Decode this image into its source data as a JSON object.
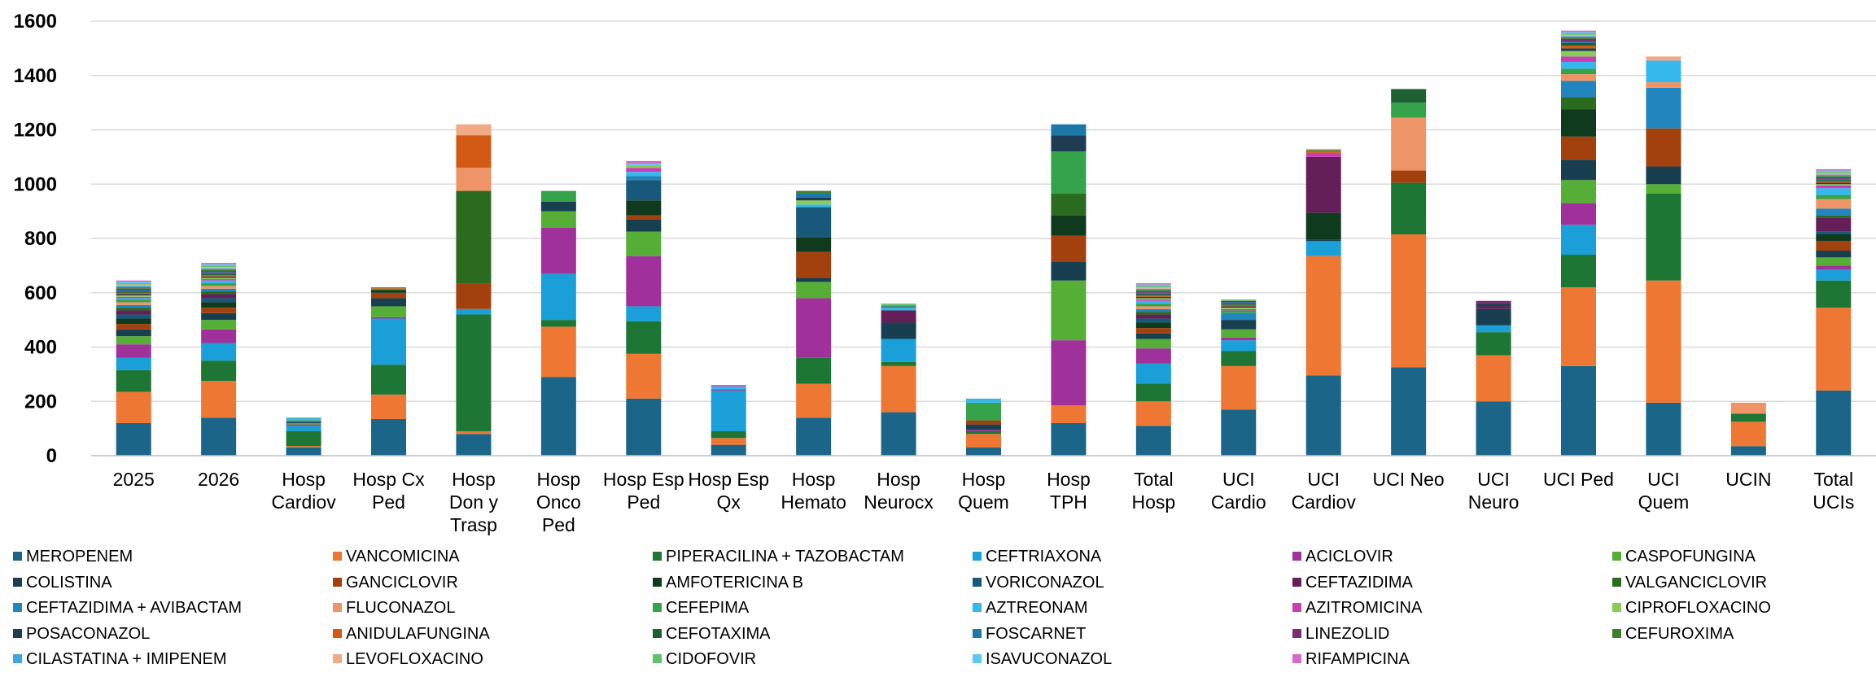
{
  "chart_data": {
    "type": "bar",
    "stacked": true,
    "title": "",
    "xlabel": "",
    "ylabel": "",
    "ylim": [
      0,
      1600
    ],
    "yticks": [
      0,
      200,
      400,
      600,
      800,
      1000,
      1200,
      1400,
      1600
    ],
    "grid": true,
    "legend_position": "bottom",
    "categories": [
      "2025",
      "2026",
      "Hosp Cardiov",
      "Hosp Cx Ped",
      "Hosp Don y Trasp",
      "Hosp Onco Ped",
      "Hosp Esp Ped",
      "Hosp Esp Qx",
      "Hosp Hemato",
      "Hosp Neurocx",
      "Hosp Quem",
      "Hosp TPH",
      "Total Hosp",
      "UCI Cardio",
      "UCI Cardiov",
      "UCI Neo",
      "UCI Neuro",
      "UCI Ped",
      "UCI Quem",
      "UCIN",
      "Total UCIs"
    ],
    "category_labels": [
      [
        "2025"
      ],
      [
        "2026"
      ],
      [
        "Hosp",
        "Cardiov"
      ],
      [
        "Hosp Cx",
        "Ped"
      ],
      [
        "Hosp",
        "Don y",
        "Trasp"
      ],
      [
        "Hosp",
        "Onco",
        "Ped"
      ],
      [
        "Hosp Esp",
        "Ped"
      ],
      [
        "Hosp Esp",
        "Qx"
      ],
      [
        "Hosp",
        "Hemato"
      ],
      [
        "Hosp",
        "Neurocx"
      ],
      [
        "Hosp",
        "Quem"
      ],
      [
        "Hosp",
        "TPH"
      ],
      [
        "Total",
        "Hosp"
      ],
      [
        "UCI",
        "Cardio"
      ],
      [
        "UCI",
        "Cardiov"
      ],
      [
        "UCI Neo"
      ],
      [
        "UCI",
        "Neuro"
      ],
      [
        "UCI Ped"
      ],
      [
        "UCI",
        "Quem"
      ],
      [
        "UCIN"
      ],
      [
        "Total",
        "UCIs"
      ]
    ],
    "series": [
      {
        "name": "MEROPENEM",
        "color": "#1B6688",
        "values": [
          120,
          140,
          30,
          135,
          80,
          290,
          210,
          40,
          140,
          160,
          30,
          120,
          110,
          170,
          295,
          325,
          200,
          330,
          195,
          35,
          240
        ]
      },
      {
        "name": "VANCOMICINA",
        "color": "#EE7733",
        "values": [
          115,
          135,
          5,
          90,
          10,
          185,
          165,
          25,
          125,
          170,
          50,
          65,
          90,
          160,
          440,
          490,
          170,
          290,
          450,
          90,
          305
        ]
      },
      {
        "name": "PIPERACILINA + TAZOBACTAM",
        "color": "#1D7634",
        "values": [
          80,
          75,
          55,
          110,
          430,
          25,
          120,
          25,
          95,
          15,
          10,
          0,
          65,
          55,
          0,
          190,
          85,
          120,
          320,
          30,
          100
        ]
      },
      {
        "name": "CEFTRIAXONA",
        "color": "#1A9FD8",
        "values": [
          45,
          65,
          20,
          170,
          20,
          170,
          55,
          150,
          0,
          85,
          0,
          0,
          75,
          40,
          55,
          0,
          25,
          110,
          0,
          0,
          40
        ]
      },
      {
        "name": "ACICLOVIR",
        "color": "#A0319A",
        "values": [
          50,
          50,
          5,
          5,
          0,
          170,
          185,
          5,
          220,
          0,
          5,
          240,
          55,
          10,
          0,
          0,
          0,
          80,
          0,
          0,
          15
        ]
      },
      {
        "name": "CASPOFUNGINA",
        "color": "#55AE35",
        "values": [
          30,
          35,
          5,
          40,
          0,
          60,
          90,
          0,
          60,
          0,
          0,
          220,
          35,
          30,
          0,
          0,
          0,
          85,
          35,
          0,
          30
        ]
      },
      {
        "name": "COLISTINA",
        "color": "#173F4F",
        "values": [
          25,
          25,
          5,
          30,
          0,
          35,
          45,
          0,
          15,
          60,
          20,
          70,
          20,
          35,
          5,
          0,
          60,
          75,
          65,
          0,
          25
        ]
      },
      {
        "name": "GANCICLOVIR",
        "color": "#A2410E",
        "values": [
          20,
          20,
          0,
          20,
          95,
          0,
          15,
          0,
          95,
          0,
          15,
          95,
          20,
          0,
          0,
          45,
          0,
          85,
          140,
          0,
          35
        ]
      },
      {
        "name": "AMFOTERICINA B",
        "color": "#103A1D",
        "values": [
          20,
          20,
          0,
          10,
          0,
          0,
          55,
          0,
          55,
          0,
          0,
          75,
          20,
          0,
          100,
          0,
          0,
          100,
          0,
          0,
          25
        ]
      },
      {
        "name": "VORICONAZOL",
        "color": "#18587A",
        "values": [
          15,
          15,
          0,
          0,
          0,
          0,
          75,
          0,
          110,
          0,
          0,
          0,
          15,
          0,
          0,
          0,
          0,
          0,
          0,
          0,
          10
        ]
      },
      {
        "name": "CEFTAZIDIMA",
        "color": "#641F58",
        "values": [
          15,
          15,
          0,
          0,
          0,
          0,
          0,
          0,
          0,
          45,
          0,
          0,
          15,
          0,
          205,
          0,
          10,
          0,
          0,
          0,
          50
        ]
      },
      {
        "name": "VALGANCICLOVIR",
        "color": "#2B6B20",
        "values": [
          10,
          10,
          0,
          0,
          340,
          0,
          0,
          0,
          0,
          0,
          0,
          80,
          10,
          0,
          0,
          0,
          0,
          45,
          0,
          0,
          10
        ]
      },
      {
        "name": "CEFTAZIDIMA + AVIBACTAM",
        "color": "#2185BE",
        "values": [
          10,
          10,
          0,
          0,
          0,
          0,
          15,
          0,
          0,
          0,
          0,
          0,
          10,
          25,
          0,
          0,
          0,
          60,
          150,
          0,
          25
        ]
      },
      {
        "name": "FLUCONAZOL",
        "color": "#EF9467",
        "values": [
          10,
          10,
          0,
          0,
          85,
          0,
          0,
          0,
          0,
          0,
          0,
          0,
          10,
          0,
          0,
          195,
          0,
          25,
          20,
          40,
          35
        ]
      },
      {
        "name": "CEFEPIMA",
        "color": "#35A34A",
        "values": [
          10,
          10,
          5,
          5,
          0,
          40,
          0,
          0,
          0,
          0,
          65,
          155,
          10,
          10,
          0,
          55,
          0,
          20,
          0,
          0,
          15
        ]
      },
      {
        "name": "AZTREONAM",
        "color": "#35B9EC",
        "values": [
          5,
          10,
          5,
          0,
          0,
          0,
          15,
          10,
          10,
          10,
          10,
          0,
          10,
          0,
          0,
          0,
          0,
          25,
          80,
          0,
          25
        ]
      },
      {
        "name": "AZITROMICINA",
        "color": "#C83EB7",
        "values": [
          5,
          5,
          0,
          0,
          0,
          0,
          15,
          5,
          0,
          0,
          0,
          0,
          5,
          5,
          15,
          0,
          0,
          20,
          0,
          0,
          10
        ]
      },
      {
        "name": "CIPROFLOXACINO",
        "color": "#8BCB58",
        "values": [
          5,
          5,
          0,
          0,
          0,
          0,
          10,
          0,
          15,
          0,
          0,
          0,
          5,
          5,
          0,
          0,
          0,
          20,
          0,
          0,
          5
        ]
      },
      {
        "name": "POSACONAZOL",
        "color": "#1F3D52",
        "values": [
          5,
          5,
          0,
          0,
          0,
          0,
          0,
          0,
          10,
          0,
          0,
          60,
          5,
          5,
          0,
          0,
          10,
          10,
          0,
          0,
          5
        ]
      },
      {
        "name": "ANIDULAFUNGINA",
        "color": "#D35A14",
        "values": [
          5,
          5,
          0,
          5,
          120,
          0,
          0,
          0,
          0,
          0,
          0,
          0,
          5,
          5,
          5,
          0,
          0,
          10,
          0,
          0,
          5
        ]
      },
      {
        "name": "CEFOTAXIMA",
        "color": "#1F6033",
        "values": [
          5,
          5,
          0,
          0,
          0,
          0,
          0,
          0,
          0,
          0,
          0,
          0,
          5,
          5,
          0,
          50,
          0,
          10,
          0,
          0,
          5
        ]
      },
      {
        "name": "FOSCARNET",
        "color": "#1C78A6",
        "values": [
          5,
          5,
          0,
          0,
          0,
          0,
          0,
          0,
          15,
          0,
          0,
          40,
          5,
          5,
          0,
          0,
          0,
          5,
          0,
          0,
          5
        ]
      },
      {
        "name": "LINEZOLID",
        "color": "#7A2E72",
        "values": [
          5,
          5,
          0,
          0,
          0,
          0,
          0,
          0,
          0,
          0,
          0,
          0,
          5,
          5,
          0,
          0,
          10,
          10,
          0,
          0,
          5
        ]
      },
      {
        "name": "CEFUROXIMA",
        "color": "#3D7F2E",
        "values": [
          5,
          5,
          0,
          0,
          0,
          0,
          0,
          0,
          10,
          5,
          0,
          0,
          5,
          0,
          5,
          0,
          0,
          5,
          0,
          0,
          5
        ]
      },
      {
        "name": "CILASTATINA + IMIPENEM",
        "color": "#3DA6DC",
        "values": [
          5,
          5,
          5,
          0,
          0,
          0,
          0,
          0,
          0,
          5,
          5,
          0,
          5,
          0,
          0,
          0,
          0,
          5,
          0,
          0,
          5
        ]
      },
      {
        "name": "LEVOFLOXACINO",
        "color": "#F1AA85",
        "values": [
          5,
          5,
          0,
          0,
          40,
          0,
          0,
          0,
          0,
          0,
          0,
          0,
          5,
          0,
          5,
          0,
          0,
          5,
          15,
          0,
          5
        ]
      },
      {
        "name": "CIDOFOVIR",
        "color": "#5FC26A",
        "values": [
          5,
          5,
          0,
          0,
          0,
          0,
          0,
          0,
          0,
          5,
          0,
          0,
          5,
          5,
          0,
          0,
          0,
          5,
          0,
          0,
          5
        ]
      },
      {
        "name": "ISAVUCONAZOL",
        "color": "#5CCAF0",
        "values": [
          5,
          5,
          0,
          0,
          0,
          0,
          5,
          0,
          0,
          0,
          0,
          0,
          5,
          0,
          0,
          0,
          0,
          5,
          0,
          0,
          5
        ]
      },
      {
        "name": "RIFAMPICINA",
        "color": "#D46AC8",
        "values": [
          5,
          5,
          0,
          0,
          0,
          0,
          10,
          0,
          0,
          0,
          0,
          0,
          5,
          0,
          0,
          0,
          0,
          5,
          0,
          0,
          5
        ]
      }
    ]
  }
}
